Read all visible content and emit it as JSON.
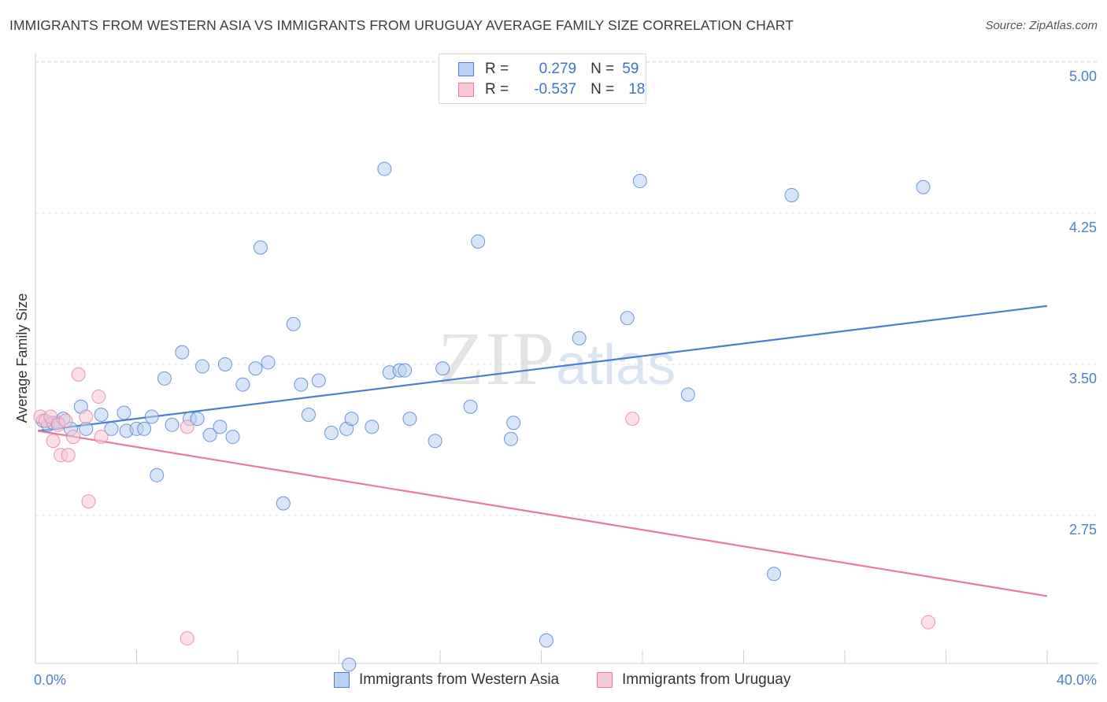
{
  "header": {
    "title": "IMMIGRANTS FROM WESTERN ASIA VS IMMIGRANTS FROM URUGUAY AVERAGE FAMILY SIZE CORRELATION CHART",
    "source": "Source: ZipAtlas.com"
  },
  "watermark": {
    "zip": "ZIP",
    "atlas": "atlas"
  },
  "legend": {
    "rows": [
      {
        "r_label": "R =",
        "r_value": "0.279",
        "n_label": "N =",
        "n_value": "59",
        "color": "#4a7fd0",
        "fill": "#b8d0f2"
      },
      {
        "r_label": "R =",
        "r_value": "-0.537",
        "n_label": "N =",
        "n_value": "18",
        "color": "#e87aa0",
        "fill": "#f8c6d6"
      }
    ]
  },
  "bottom_legend": {
    "items": [
      {
        "label": "Immigrants from Western Asia",
        "color": "#4a7fd0",
        "fill": "#b8d0f2"
      },
      {
        "label": "Immigrants from Uruguay",
        "color": "#e87aa0",
        "fill": "#f8c6d6"
      }
    ]
  },
  "chart_data": {
    "type": "scatter",
    "title": "IMMIGRANTS FROM WESTERN ASIA VS IMMIGRANTS FROM URUGUAY AVERAGE FAMILY SIZE CORRELATION CHART",
    "xlabel": "",
    "ylabel": "Average Family Size",
    "xlim": [
      0,
      40
    ],
    "ylim": [
      2.0,
      5.1
    ],
    "x_tick_labels": [
      "0.0%",
      "40.0%"
    ],
    "y_ticks": [
      2.75,
      3.5,
      4.25,
      5.0
    ],
    "y_tick_labels": [
      "2.75",
      "3.50",
      "4.25",
      "5.00"
    ],
    "grid": true,
    "series": [
      {
        "name": "Immigrants from Western Asia",
        "color": "#4a7fd0",
        "fill": "#b8d0f2",
        "trend": {
          "x": [
            0.1,
            40.0
          ],
          "y": [
            3.17,
            3.79
          ]
        },
        "points": [
          [
            0.3,
            3.22
          ],
          [
            0.5,
            3.2
          ],
          [
            0.7,
            3.21
          ],
          [
            0.9,
            3.21
          ],
          [
            1.1,
            3.23
          ],
          [
            1.4,
            3.18
          ],
          [
            1.8,
            3.29
          ],
          [
            2.0,
            3.18
          ],
          [
            2.6,
            3.25
          ],
          [
            3.0,
            3.18
          ],
          [
            3.5,
            3.26
          ],
          [
            3.6,
            3.17
          ],
          [
            4.0,
            3.18
          ],
          [
            4.3,
            3.18
          ],
          [
            4.6,
            3.24
          ],
          [
            4.8,
            2.95
          ],
          [
            5.1,
            3.43
          ],
          [
            5.4,
            3.2
          ],
          [
            5.8,
            3.56
          ],
          [
            6.1,
            3.23
          ],
          [
            6.4,
            3.23
          ],
          [
            6.6,
            3.49
          ],
          [
            6.9,
            3.15
          ],
          [
            7.3,
            3.19
          ],
          [
            7.5,
            3.5
          ],
          [
            7.8,
            3.14
          ],
          [
            8.2,
            3.4
          ],
          [
            8.7,
            3.48
          ],
          [
            8.9,
            4.08
          ],
          [
            9.2,
            3.51
          ],
          [
            9.8,
            2.81
          ],
          [
            10.2,
            3.7
          ],
          [
            10.5,
            3.4
          ],
          [
            10.8,
            3.25
          ],
          [
            11.2,
            3.42
          ],
          [
            11.7,
            3.16
          ],
          [
            12.3,
            3.18
          ],
          [
            12.5,
            3.23
          ],
          [
            12.4,
            2.01
          ],
          [
            13.3,
            3.19
          ],
          [
            13.8,
            4.47
          ],
          [
            14.0,
            3.46
          ],
          [
            14.4,
            3.47
          ],
          [
            14.6,
            3.47
          ],
          [
            14.8,
            3.23
          ],
          [
            15.8,
            3.12
          ],
          [
            16.1,
            3.48
          ],
          [
            17.2,
            3.29
          ],
          [
            17.5,
            4.11
          ],
          [
            18.8,
            3.13
          ],
          [
            18.9,
            3.21
          ],
          [
            20.2,
            2.13
          ],
          [
            21.5,
            3.63
          ],
          [
            23.4,
            3.73
          ],
          [
            23.9,
            4.41
          ],
          [
            25.8,
            3.35
          ],
          [
            29.2,
            2.46
          ],
          [
            29.9,
            4.34
          ],
          [
            35.1,
            4.38
          ]
        ]
      },
      {
        "name": "Immigrants from Uruguay",
        "color": "#e87aa0",
        "fill": "#f8c6d6",
        "trend": {
          "x": [
            0.1,
            40.0
          ],
          "y": [
            3.17,
            2.35
          ]
        },
        "points": [
          [
            0.2,
            3.24
          ],
          [
            0.4,
            3.22
          ],
          [
            0.6,
            3.24
          ],
          [
            0.7,
            3.12
          ],
          [
            0.9,
            3.2
          ],
          [
            1.0,
            3.05
          ],
          [
            1.2,
            3.22
          ],
          [
            1.3,
            3.05
          ],
          [
            1.5,
            3.14
          ],
          [
            1.7,
            3.45
          ],
          [
            2.0,
            3.24
          ],
          [
            2.1,
            2.82
          ],
          [
            2.5,
            3.34
          ],
          [
            2.6,
            3.14
          ],
          [
            6.0,
            2.14
          ],
          [
            6.0,
            3.19
          ],
          [
            23.6,
            3.23
          ],
          [
            35.3,
            2.22
          ]
        ]
      }
    ]
  }
}
